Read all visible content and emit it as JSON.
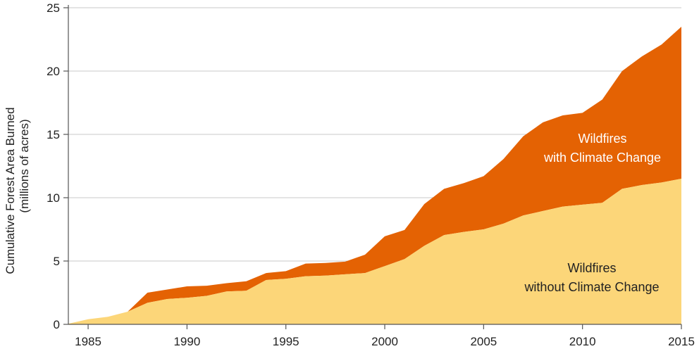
{
  "chart_data": {
    "type": "area",
    "stacked": true,
    "title": "",
    "xlabel": "",
    "ylabel": [
      "Cumulative Forest Area Burned",
      "(millions of acres)"
    ],
    "xlim": [
      1984,
      2015
    ],
    "ylim": [
      0,
      25
    ],
    "x": [
      1984,
      1985,
      1986,
      1987,
      1988,
      1989,
      1990,
      1991,
      1992,
      1993,
      1994,
      1995,
      1996,
      1997,
      1998,
      1999,
      2000,
      2001,
      2002,
      2003,
      2004,
      2005,
      2006,
      2007,
      2008,
      2009,
      2010,
      2011,
      2012,
      2013,
      2014,
      2015
    ],
    "xticks": [
      1985,
      1990,
      1995,
      2000,
      2005,
      2010,
      2015
    ],
    "yticks": [
      0,
      5,
      10,
      15,
      20,
      25
    ],
    "grid": "horizontal",
    "series": [
      {
        "name": "Wildfires without Climate Change",
        "annotation": [
          "Wildfires",
          "without Climate Change"
        ],
        "color": "#fcd679",
        "label_color": "#222222",
        "values": [
          0.05,
          0.4,
          0.6,
          1.0,
          1.7,
          2.0,
          2.1,
          2.25,
          2.6,
          2.65,
          3.5,
          3.6,
          3.8,
          3.85,
          3.95,
          4.05,
          4.6,
          5.15,
          6.2,
          7.05,
          7.3,
          7.5,
          7.95,
          8.6,
          8.95,
          9.3,
          9.45,
          9.6,
          10.7,
          11.0,
          11.2,
          11.5
        ]
      },
      {
        "name": "Wildfires with Climate Change",
        "annotation": [
          "Wildfires",
          "with Climate Change"
        ],
        "color": "#e46203",
        "label_color": "#ffffff",
        "total": [
          0.05,
          0.4,
          0.6,
          1.0,
          2.5,
          2.75,
          3.0,
          3.05,
          3.25,
          3.4,
          4.05,
          4.2,
          4.8,
          4.85,
          4.95,
          5.5,
          6.95,
          7.45,
          9.5,
          10.7,
          11.15,
          11.7,
          13.05,
          14.85,
          15.95,
          16.5,
          16.7,
          17.75,
          20.0,
          21.15,
          22.1,
          23.5
        ]
      }
    ]
  }
}
